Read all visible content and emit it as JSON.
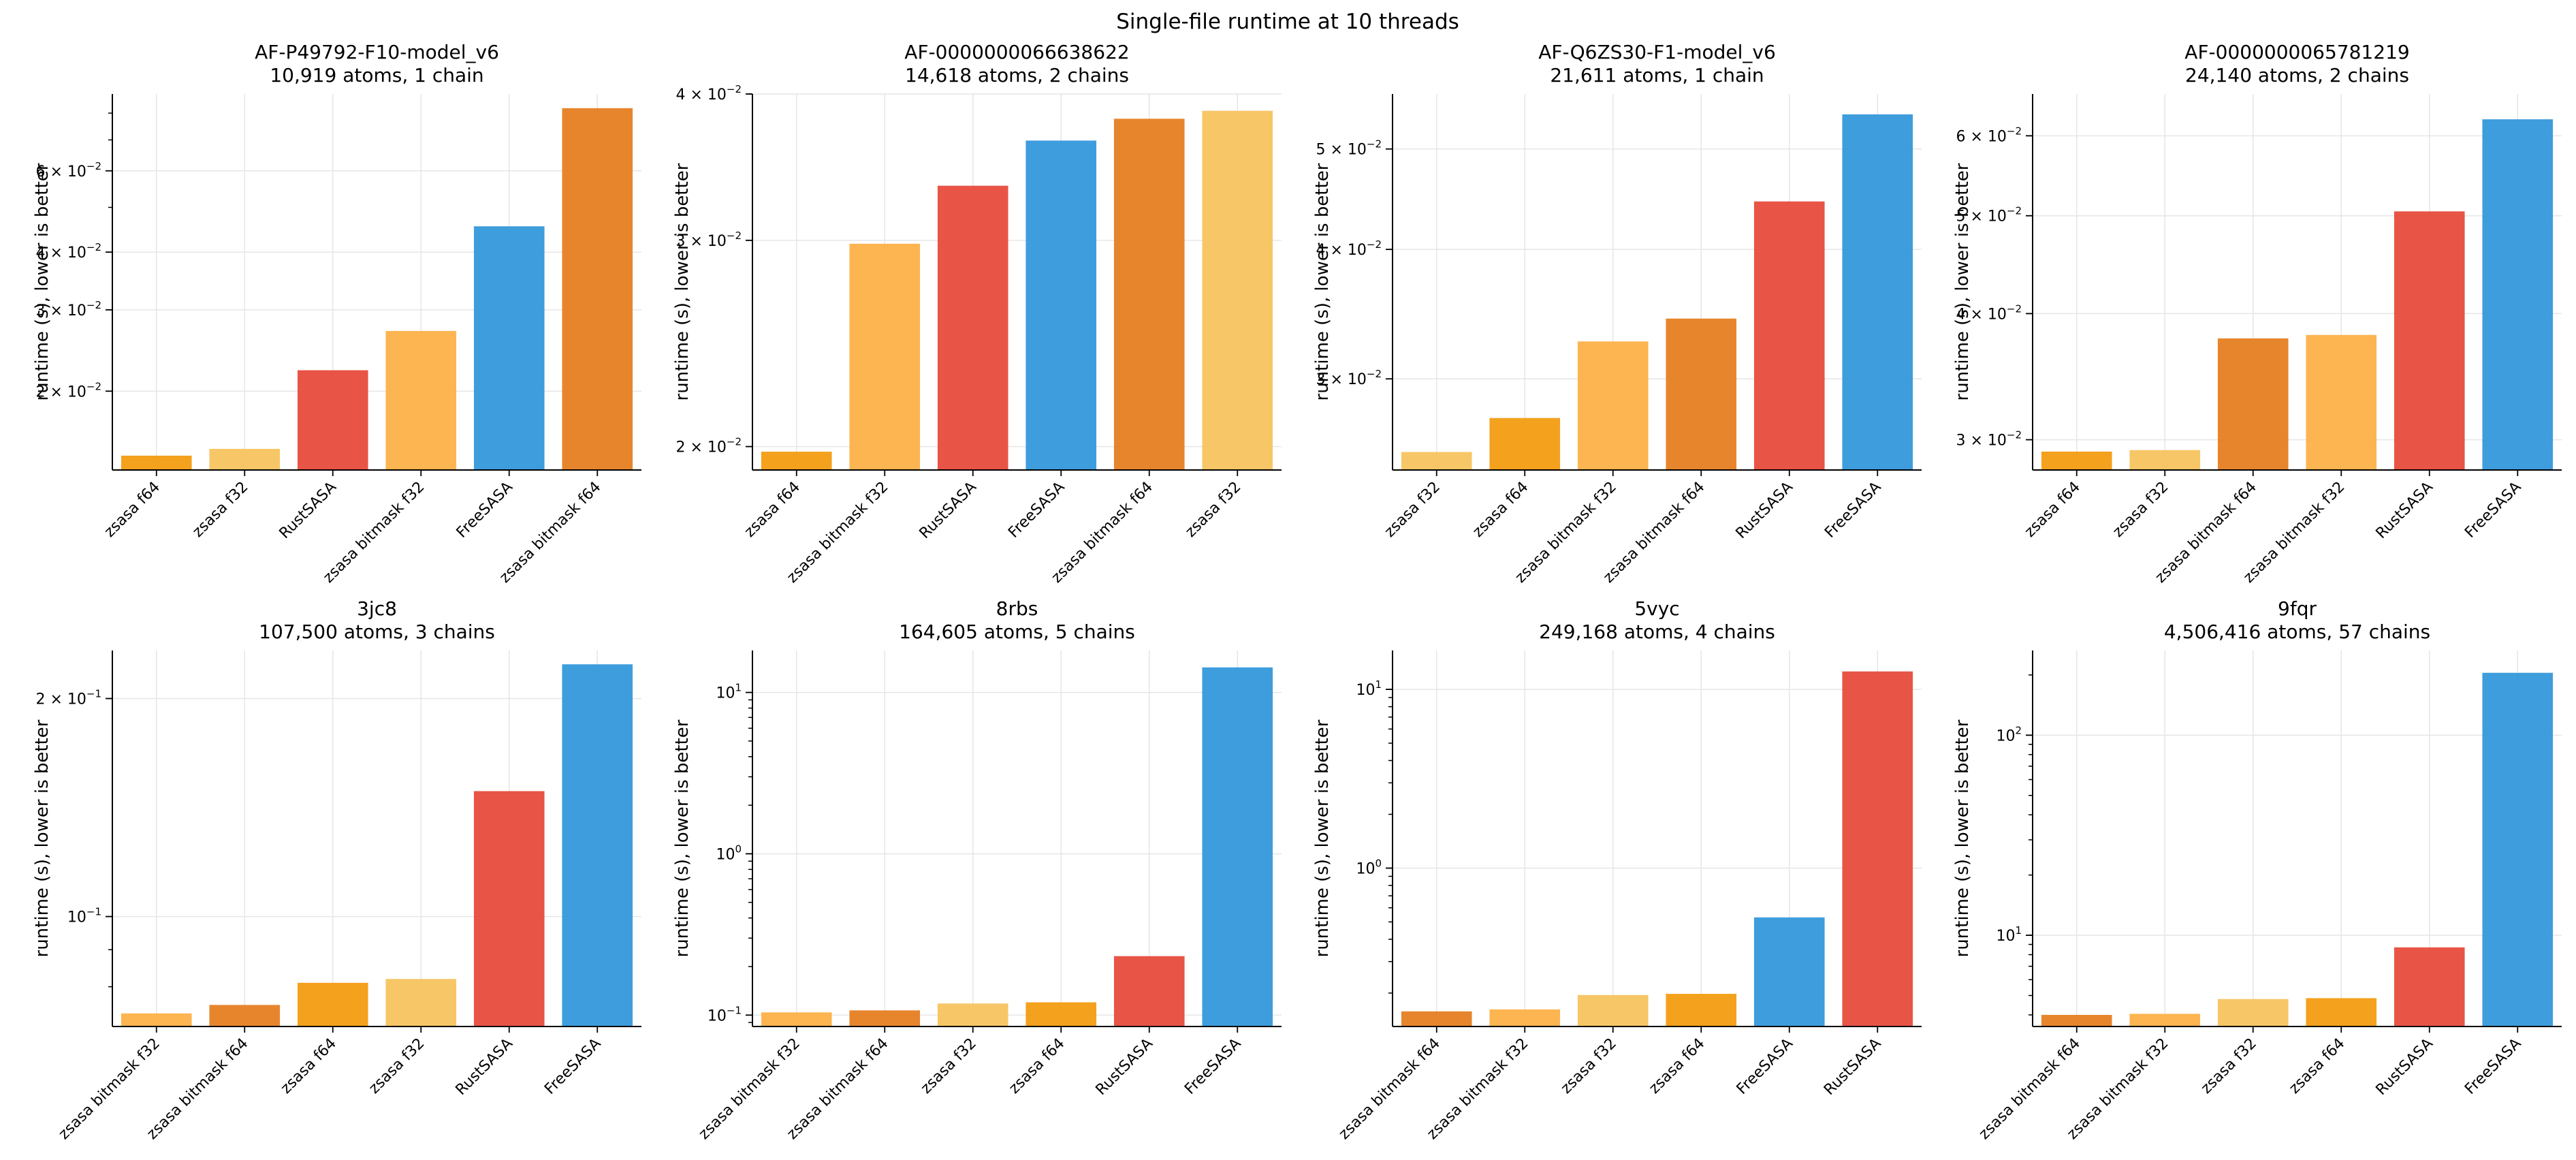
{
  "figure": {
    "title": "Single-file runtime at 10 threads"
  },
  "colors": {
    "zsasa f64": "#F39C12",
    "zsasa f32": "#F7C35F",
    "zsasa bitmask f32": "#FDB148",
    "zsasa bitmask f64": "#E67E22",
    "RustSASA": "#E74C3C",
    "FreeSASA": "#3498DB"
  },
  "chart_data": [
    {
      "type": "bar",
      "title": "AF-P49792-F10-model_v6",
      "subtitle": "10,919 atoms, 1 chain",
      "ylabel": "runtime (s), lower is better",
      "yscale": "log",
      "ylim": [
        0.0135,
        0.088
      ],
      "grid": true,
      "yticks": [
        {
          "value": 0.02,
          "mant": "2",
          "exp": "−2"
        },
        {
          "value": 0.03,
          "mant": "3",
          "exp": "−2"
        },
        {
          "value": 0.04,
          "mant": "4",
          "exp": "−2"
        },
        {
          "value": 0.06,
          "mant": "6",
          "exp": "−2"
        }
      ],
      "categories": [
        "zsasa f64",
        "zsasa f32",
        "RustSASA",
        "zsasa bitmask f32",
        "FreeSASA",
        "zsasa bitmask f64"
      ],
      "values": [
        0.0145,
        0.015,
        0.0222,
        0.027,
        0.0455,
        0.082
      ]
    },
    {
      "type": "bar",
      "title": "AF-0000000066638622",
      "subtitle": "14,618 atoms, 2 chains",
      "ylabel": "runtime (s), lower is better",
      "yscale": "log",
      "ylim": [
        0.0191,
        0.04
      ],
      "grid": true,
      "yticks": [
        {
          "value": 0.02,
          "mant": "2",
          "exp": "−2"
        },
        {
          "value": 0.03,
          "mant": "3",
          "exp": "−2"
        },
        {
          "value": 0.04,
          "mant": "4",
          "exp": "−2"
        }
      ],
      "categories": [
        "zsasa f64",
        "zsasa bitmask f32",
        "RustSASA",
        "FreeSASA",
        "zsasa bitmask f64",
        "zsasa f32"
      ],
      "values": [
        0.0198,
        0.0298,
        0.0334,
        0.0365,
        0.0381,
        0.0387
      ]
    },
    {
      "type": "bar",
      "title": "AF-Q6ZS30-F1-model_v6",
      "subtitle": "21,611 atoms, 1 chain",
      "ylabel": "runtime (s), lower is better",
      "yscale": "log",
      "ylim": [
        0.0245,
        0.0565
      ],
      "grid": true,
      "yticks": [
        {
          "value": 0.03,
          "mant": "3",
          "exp": "−2"
        },
        {
          "value": 0.04,
          "mant": "4",
          "exp": "−2"
        },
        {
          "value": 0.05,
          "mant": "5",
          "exp": "−2"
        }
      ],
      "categories": [
        "zsasa f32",
        "zsasa f64",
        "zsasa bitmask f32",
        "zsasa bitmask f64",
        "RustSASA",
        "FreeSASA"
      ],
      "values": [
        0.0255,
        0.0275,
        0.0326,
        0.0343,
        0.0445,
        0.054
      ]
    },
    {
      "type": "bar",
      "title": "AF-0000000065781219",
      "subtitle": "24,140 atoms, 2 chains",
      "ylabel": "runtime (s), lower is better",
      "yscale": "log",
      "ylim": [
        0.028,
        0.066
      ],
      "grid": true,
      "yticks": [
        {
          "value": 0.03,
          "mant": "3",
          "exp": "−2"
        },
        {
          "value": 0.04,
          "mant": "4",
          "exp": "−2"
        },
        {
          "value": 0.05,
          "mant": "5",
          "exp": "−2"
        },
        {
          "value": 0.06,
          "mant": "6",
          "exp": "−2"
        }
      ],
      "categories": [
        "zsasa f64",
        "zsasa f32",
        "zsasa bitmask f64",
        "zsasa bitmask f32",
        "RustSASA",
        "FreeSASA"
      ],
      "values": [
        0.0292,
        0.0293,
        0.0378,
        0.0381,
        0.0505,
        0.0623
      ]
    },
    {
      "type": "bar",
      "title": "3jc8",
      "subtitle": "107,500 atoms, 3 chains",
      "ylabel": "runtime (s), lower is better",
      "yscale": "log",
      "ylim": [
        0.0705,
        0.233
      ],
      "grid": true,
      "yticks": [
        {
          "value": 0.1,
          "mant": "10",
          "exp": "−1"
        },
        {
          "value": 0.2,
          "mant": "2",
          "exp": "−1"
        }
      ],
      "categories": [
        "zsasa bitmask f32",
        "zsasa bitmask f64",
        "zsasa f64",
        "zsasa f32",
        "RustSASA",
        "FreeSASA"
      ],
      "values": [
        0.0735,
        0.0755,
        0.081,
        0.082,
        0.149,
        0.223
      ]
    },
    {
      "type": "bar",
      "title": "8rbs",
      "subtitle": "164,605 atoms, 5 chains",
      "ylabel": "runtime (s), lower is better",
      "yscale": "log",
      "ylim": [
        0.085,
        18.2
      ],
      "grid": true,
      "yticks": [
        {
          "value": 0.1,
          "mant": "10",
          "exp": "−1"
        },
        {
          "value": 1,
          "mant": "10",
          "exp": "0"
        },
        {
          "value": 10,
          "mant": "10",
          "exp": "1"
        }
      ],
      "categories": [
        "zsasa bitmask f32",
        "zsasa bitmask f64",
        "zsasa f32",
        "zsasa f64",
        "RustSASA",
        "FreeSASA"
      ],
      "values": [
        0.104,
        0.107,
        0.118,
        0.12,
        0.232,
        14.3
      ]
    },
    {
      "type": "bar",
      "title": "5vyc",
      "subtitle": "249,168 atoms, 4 chains",
      "ylabel": "runtime (s), lower is better",
      "yscale": "log",
      "ylim": [
        0.13,
        16.5
      ],
      "grid": true,
      "yticks": [
        {
          "value": 1,
          "mant": "10",
          "exp": "0"
        },
        {
          "value": 10,
          "mant": "10",
          "exp": "1"
        }
      ],
      "categories": [
        "zsasa bitmask f64",
        "zsasa bitmask f32",
        "zsasa f32",
        "zsasa f64",
        "FreeSASA",
        "RustSASA"
      ],
      "values": [
        0.158,
        0.162,
        0.195,
        0.198,
        0.53,
        12.6
      ]
    },
    {
      "type": "bar",
      "title": "9fqr",
      "subtitle": "4,506,416 atoms, 57 chains",
      "ylabel": "runtime (s), lower is better",
      "yscale": "log",
      "ylim": [
        3.5,
        265
      ],
      "grid": true,
      "yticks": [
        {
          "value": 10,
          "mant": "10",
          "exp": "1"
        },
        {
          "value": 100,
          "mant": "10",
          "exp": "2"
        }
      ],
      "categories": [
        "zsasa bitmask f64",
        "zsasa bitmask f32",
        "zsasa f32",
        "zsasa f64",
        "RustSASA",
        "FreeSASA"
      ],
      "values": [
        4.0,
        4.05,
        4.8,
        4.85,
        8.7,
        205
      ]
    }
  ]
}
